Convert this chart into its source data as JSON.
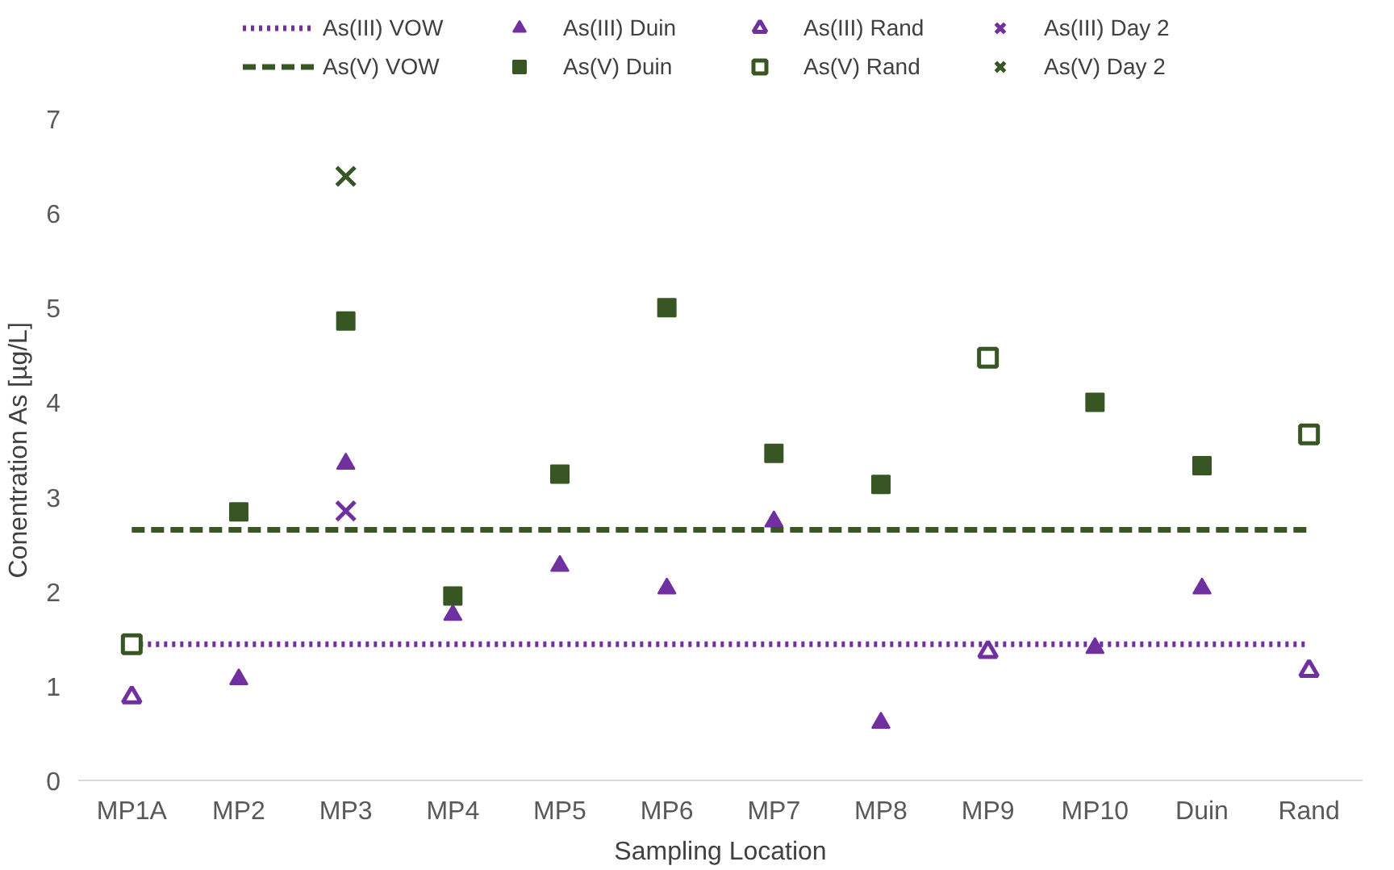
{
  "chart_data": {
    "type": "scatter",
    "xlabel": "Sampling Location",
    "ylabel": "Conentration As [µg/L]",
    "categories": [
      "MP1A",
      "MP2",
      "MP3",
      "MP4",
      "MP5",
      "MP6",
      "MP7",
      "MP8",
      "MP9",
      "MP10",
      "Duin",
      "Rand"
    ],
    "ylim": [
      0,
      7
    ],
    "yticks": [
      0,
      1,
      2,
      3,
      4,
      5,
      6,
      7
    ],
    "legend": "top",
    "series": [
      {
        "name": "As(III) VOW",
        "type": "line",
        "line_style": "dotted",
        "marker": "none",
        "color": "#7030a0",
        "values": [
          1.44,
          1.44,
          1.44,
          1.44,
          1.44,
          1.44,
          1.44,
          1.44,
          1.44,
          1.44,
          1.44,
          1.44
        ]
      },
      {
        "name": "As(III) Duin",
        "marker": "triangle",
        "color": "#7030a0",
        "values": [
          null,
          1.07,
          3.35,
          1.75,
          2.27,
          2.03,
          2.74,
          0.61,
          null,
          1.4,
          2.03,
          null
        ]
      },
      {
        "name": "As(III) Rand",
        "marker": "triangle_open",
        "color": "#7030a0",
        "values": [
          0.88,
          null,
          null,
          null,
          null,
          null,
          null,
          null,
          1.36,
          null,
          null,
          1.16
        ]
      },
      {
        "name": "As(III) Day 2",
        "marker": "cross",
        "color": "#7030a0",
        "values": [
          null,
          null,
          2.85,
          null,
          null,
          null,
          null,
          null,
          null,
          null,
          null,
          null
        ]
      },
      {
        "name": "As(V) VOW",
        "type": "line",
        "line_style": "dashed",
        "marker": "none",
        "color": "#375623",
        "values": [
          2.65,
          2.65,
          2.65,
          2.65,
          2.65,
          2.65,
          2.65,
          2.65,
          2.65,
          2.65,
          2.65,
          2.65
        ]
      },
      {
        "name": "As(V) Duin",
        "marker": "square",
        "color": "#375623",
        "values": [
          null,
          2.84,
          4.86,
          1.95,
          3.24,
          5.0,
          3.46,
          3.13,
          null,
          4.0,
          3.33,
          null
        ]
      },
      {
        "name": "As(V) Rand",
        "marker": "square_open",
        "color": "#375623",
        "values": [
          1.44,
          null,
          null,
          null,
          null,
          null,
          null,
          null,
          4.47,
          null,
          null,
          3.66
        ]
      },
      {
        "name": "As(V) Day 2",
        "marker": "cross",
        "color": "#375623",
        "values": [
          null,
          null,
          6.39,
          null,
          null,
          null,
          null,
          null,
          null,
          null,
          null,
          null
        ]
      }
    ]
  }
}
